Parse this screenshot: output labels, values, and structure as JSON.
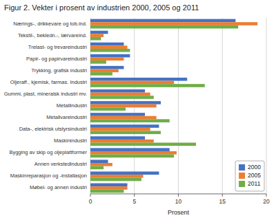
{
  "chart_data": {
    "type": "bar",
    "orientation": "horizontal",
    "title": "Figur 2. Vekter i prosent av industrien 2000, 2005 og 2011",
    "categories": [
      "Nærings-, drikkevare og tob.ind.",
      "Tekstil-, bekledn.-, lærvareind.",
      "Trelast- og trevareindustri",
      "Papir- og papirvareindustri",
      "Trykking, grafisk industri",
      "Oljeraff., kjemisk, farmas. Industri",
      "Gummi, plast, mineralsk industri mv.",
      "Metallindustri",
      "Metallvareindustri",
      "Data-, elektrisk utstyrsindustri",
      "Maskinindustri",
      "Bygging av skip og oljeplattformer",
      "Annen verkstedindustri",
      "Maskinreparasjon og -installasjon",
      "Møbel- og annen industri"
    ],
    "series": [
      {
        "name": "2000",
        "color": "#4472C4",
        "values": [
          16.5,
          2.0,
          3.8,
          4.5,
          3.8,
          11.0,
          6.2,
          8.0,
          6.2,
          7.8,
          6.2,
          9.0,
          2.0,
          7.8,
          4.2
        ]
      },
      {
        "name": "2005",
        "color": "#ED7D31",
        "values": [
          19.0,
          1.5,
          4.2,
          3.8,
          3.2,
          9.5,
          6.8,
          7.5,
          7.5,
          6.8,
          7.2,
          9.8,
          2.5,
          6.0,
          4.2
        ]
      },
      {
        "name": "2011",
        "color": "#70AD47",
        "values": [
          16.8,
          1.2,
          4.5,
          1.8,
          2.5,
          13.0,
          7.2,
          4.0,
          9.0,
          8.0,
          12.0,
          9.5,
          1.5,
          5.8,
          3.8
        ]
      }
    ],
    "xlabel": "Prosent",
    "xlim": [
      0,
      20
    ],
    "xticks": [
      0,
      5,
      10,
      15,
      20
    ],
    "grid": true,
    "legend": "lower right"
  }
}
